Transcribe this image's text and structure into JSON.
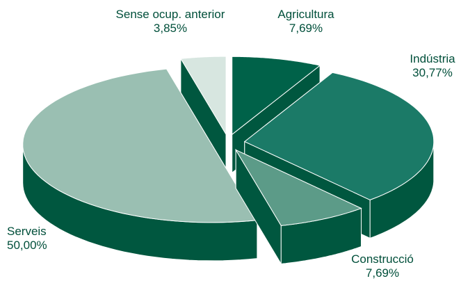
{
  "chart_data": {
    "type": "pie",
    "categories": [
      "Agricultura",
      "Indústria",
      "Construcció",
      "Serveis",
      "Sense ocup. anterior"
    ],
    "values": [
      7.69,
      30.77,
      7.69,
      50.0,
      3.85
    ],
    "value_labels": [
      "7,69%",
      "30,77%",
      "7,69%",
      "50,00%",
      "3,85%"
    ],
    "colors": [
      "#006249",
      "#1b7a67",
      "#5c9b88",
      "#9abfb2",
      "#d7e6e0"
    ],
    "side_color": "#00573f"
  }
}
